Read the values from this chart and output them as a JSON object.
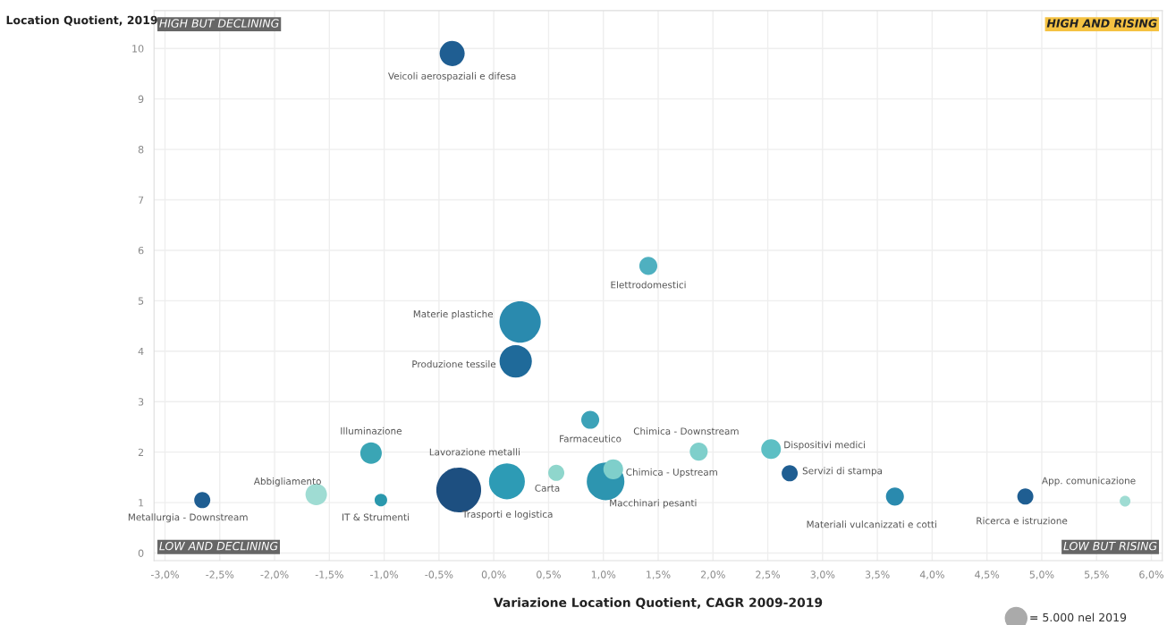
{
  "chart_data": {
    "type": "bubble",
    "xlabel": "Variazione Location Quotient, CAGR 2009-2019",
    "ylabel": "Location Quotient, 2019",
    "x": [
      -0.38,
      1.41,
      0.24,
      0.2,
      0.88,
      -1.12,
      1.87,
      2.53,
      2.7,
      1.09,
      1.02,
      0.57,
      0.12,
      -0.32,
      -1.03,
      -1.62,
      -2.66,
      3.66,
      4.85,
      5.76
    ],
    "values": [
      9.9,
      5.69,
      4.58,
      3.8,
      2.64,
      1.98,
      2.01,
      2.06,
      1.58,
      1.66,
      1.42,
      1.59,
      1.42,
      1.25,
      1.05,
      1.16,
      1.05,
      1.12,
      1.12,
      1.03
    ],
    "sizes": [
      6800,
      3500,
      18400,
      11300,
      3500,
      5000,
      3500,
      4200,
      2800,
      4200,
      15300,
      2800,
      13900,
      21700,
      1700,
      5000,
      2800,
      3500,
      2800,
      1250
    ],
    "colors": [
      "#1f5e92",
      "#4fb0c0",
      "#2a8aae",
      "#1f6a9a",
      "#3ca2b8",
      "#3aa5b5",
      "#7fcfcb",
      "#5dbfc4",
      "#1f5e92",
      "#7fcfcb",
      "#2d95b0",
      "#8fd6cc",
      "#2d9bb5",
      "#1d4f80",
      "#2a98ad",
      "#9fdcd3",
      "#1f5e92",
      "#2a8aae",
      "#1f5e92",
      "#9fdcd3"
    ],
    "size_legend": [
      {
        "value": 5000,
        "label": "= 5.000 nel 2019"
      }
    ],
    "xlim": [
      -3.1,
      6.1
    ],
    "ylim": [
      -0.15,
      10.75
    ],
    "xticks": [
      {
        "value": -3.0,
        "label": "-3,0%"
      },
      {
        "value": -2.5,
        "label": "-2,5%"
      },
      {
        "value": -2.0,
        "label": "-2,0%"
      },
      {
        "value": -1.5,
        "label": "-1,5%"
      },
      {
        "value": -1.0,
        "label": "-1,0%"
      },
      {
        "value": -0.5,
        "label": "-0,5%"
      },
      {
        "value": 0.0,
        "label": "0,0%"
      },
      {
        "value": 0.5,
        "label": "0,5%"
      },
      {
        "value": 1.0,
        "label": "1,0%"
      },
      {
        "value": 1.5,
        "label": "1,5%"
      },
      {
        "value": 2.0,
        "label": "2,0%"
      },
      {
        "value": 2.5,
        "label": "2,5%"
      },
      {
        "value": 3.0,
        "label": "3,0%"
      },
      {
        "value": 3.5,
        "label": "3,5%"
      },
      {
        "value": 4.0,
        "label": "4,0%"
      },
      {
        "value": 4.5,
        "label": "4,5%"
      },
      {
        "value": 5.0,
        "label": "5,0%"
      },
      {
        "value": 5.5,
        "label": "5,5%"
      },
      {
        "value": 6.0,
        "label": "6,0%"
      }
    ],
    "yticks": [
      0,
      1,
      2,
      3,
      4,
      5,
      6,
      7,
      8,
      9,
      10
    ],
    "grid": true,
    "annotations": [
      "HIGH BUT DECLINING",
      "HIGH AND RISING",
      "LOW AND DECLINING",
      "LOW BUT RISING",
      {
        "text": "Veicoli aerospaziali e difesa",
        "x": -0.38,
        "y": 9.9
      },
      {
        "text": "Elettrodomestici",
        "x": 1.41,
        "y": 5.69
      },
      {
        "text": "Materie plastiche",
        "x": 0.24,
        "y": 4.58
      },
      {
        "text": "Produzione tessile",
        "x": 0.2,
        "y": 3.8
      },
      {
        "text": "Farmaceutico",
        "x": 0.88,
        "y": 2.64
      },
      {
        "text": "Illuminazione",
        "x": -1.12,
        "y": 1.98
      },
      {
        "text": "Chimica - Downstream",
        "x": 1.87,
        "y": 2.01
      },
      {
        "text": "Dispositivi medici",
        "x": 2.53,
        "y": 2.06
      },
      {
        "text": "Servizi di stampa",
        "x": 2.7,
        "y": 1.58
      },
      {
        "text": "Chimica - Upstream",
        "x": 1.09,
        "y": 1.66
      },
      {
        "text": "Macchinari pesanti",
        "x": 1.02,
        "y": 1.42
      },
      {
        "text": "Carta",
        "x": 0.57,
        "y": 1.59
      },
      {
        "text": "Lavorazione metalli",
        "x": 0.12,
        "y": 1.42
      },
      {
        "text": "Trasporti e logistica",
        "x": -0.32,
        "y": 1.25
      },
      {
        "text": "IT & Strumenti",
        "x": -1.03,
        "y": 1.05
      },
      {
        "text": "Abbigliamento",
        "x": -1.62,
        "y": 1.16
      },
      {
        "text": "Metallurgia - Downstream",
        "x": -2.66,
        "y": 1.05
      },
      {
        "text": "Materiali vulcanizzati e cotti",
        "x": 3.66,
        "y": 1.12
      },
      {
        "text": "Ricerca e istruzione",
        "x": 4.85,
        "y": 1.12
      },
      {
        "text": "App. comunicazione",
        "x": 5.76,
        "y": 1.03
      }
    ]
  }
}
